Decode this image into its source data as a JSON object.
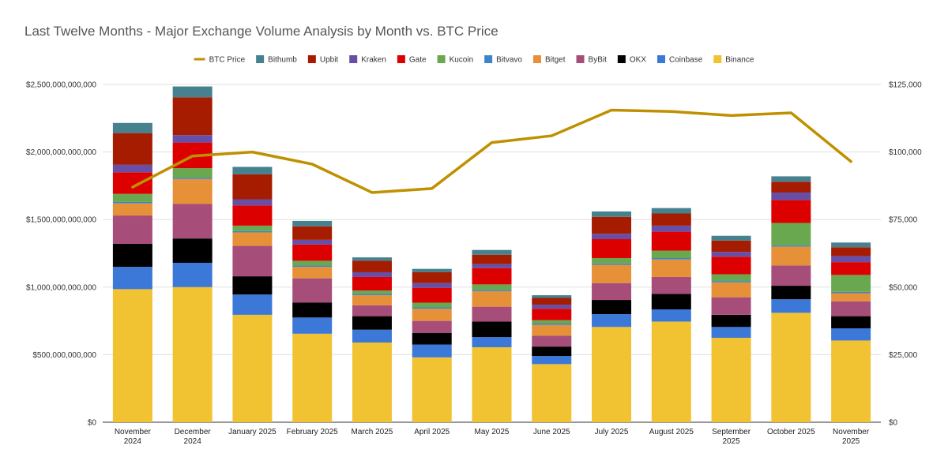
{
  "chart_data": {
    "type": "bar",
    "stacked": true,
    "title": "Last Twelve Months - Major Exchange Volume Analysis by Month vs. BTC Price",
    "categories": [
      [
        "November",
        "2024"
      ],
      [
        "December",
        "2024"
      ],
      [
        "January 2025"
      ],
      [
        "February 2025"
      ],
      [
        "March 2025"
      ],
      [
        "April 2025"
      ],
      [
        "May 2025"
      ],
      [
        "June 2025"
      ],
      [
        "July 2025"
      ],
      [
        "August 2025"
      ],
      [
        "September",
        "2025"
      ],
      [
        "October 2025"
      ],
      [
        "November",
        "2025"
      ]
    ],
    "y_left": {
      "range": [
        0,
        2500000000000
      ],
      "ticks": [
        "$0",
        "$500,000,000,000",
        "$1,000,000,000,000",
        "$1,500,000,000,000",
        "$2,000,000,000,000",
        "$2,500,000,000,000"
      ]
    },
    "y_right": {
      "range": [
        0,
        125000
      ],
      "ticks": [
        "$0",
        "$25,000",
        "$50,000",
        "$75,000",
        "$100,000",
        "$125,000"
      ]
    },
    "grid": true,
    "legend_position": "top",
    "legend": [
      "BTC Price",
      "Bithumb",
      "Upbit",
      "Kraken",
      "Gate",
      "Kucoin",
      "Bitvavo",
      "Bitget",
      "ByBit",
      "OKX",
      "Coinbase",
      "Binance"
    ],
    "series": [
      {
        "name": "Binance",
        "color": "#f1c232",
        "values": [
          985000000000,
          1000000000000,
          795000000000,
          655000000000,
          590000000000,
          480000000000,
          555000000000,
          430000000000,
          705000000000,
          745000000000,
          625000000000,
          810000000000,
          605000000000
        ]
      },
      {
        "name": "Coinbase",
        "color": "#3c78d8",
        "values": [
          165000000000,
          180000000000,
          150000000000,
          120000000000,
          95000000000,
          95000000000,
          75000000000,
          60000000000,
          95000000000,
          90000000000,
          80000000000,
          100000000000,
          90000000000
        ]
      },
      {
        "name": "OKX",
        "color": "#000000",
        "values": [
          170000000000,
          180000000000,
          135000000000,
          110000000000,
          100000000000,
          85000000000,
          115000000000,
          70000000000,
          105000000000,
          115000000000,
          90000000000,
          100000000000,
          90000000000
        ]
      },
      {
        "name": "ByBit",
        "color": "#a64d79",
        "values": [
          210000000000,
          255000000000,
          225000000000,
          180000000000,
          80000000000,
          90000000000,
          110000000000,
          80000000000,
          125000000000,
          125000000000,
          130000000000,
          150000000000,
          110000000000
        ]
      },
      {
        "name": "Bitget",
        "color": "#e69138",
        "values": [
          90000000000,
          185000000000,
          100000000000,
          85000000000,
          75000000000,
          90000000000,
          115000000000,
          80000000000,
          135000000000,
          130000000000,
          110000000000,
          140000000000,
          60000000000
        ]
      },
      {
        "name": "Bitvavo",
        "color": "#3d85c6",
        "values": [
          10000000000,
          10000000000,
          10000000000,
          10000000000,
          10000000000,
          10000000000,
          10000000000,
          10000000000,
          10000000000,
          10000000000,
          10000000000,
          10000000000,
          10000000000
        ]
      },
      {
        "name": "Kucoin",
        "color": "#6aa84f",
        "values": [
          60000000000,
          70000000000,
          40000000000,
          35000000000,
          25000000000,
          35000000000,
          40000000000,
          25000000000,
          40000000000,
          55000000000,
          50000000000,
          165000000000,
          125000000000
        ]
      },
      {
        "name": "Gate",
        "color": "#dd0000",
        "values": [
          160000000000,
          190000000000,
          150000000000,
          120000000000,
          100000000000,
          110000000000,
          120000000000,
          85000000000,
          140000000000,
          140000000000,
          130000000000,
          170000000000,
          95000000000
        ]
      },
      {
        "name": "Kraken",
        "color": "#674ea7",
        "values": [
          55000000000,
          55000000000,
          45000000000,
          35000000000,
          35000000000,
          35000000000,
          30000000000,
          30000000000,
          40000000000,
          45000000000,
          35000000000,
          55000000000,
          45000000000
        ]
      },
      {
        "name": "Upbit",
        "color": "#a61c00",
        "values": [
          235000000000,
          280000000000,
          185000000000,
          100000000000,
          85000000000,
          80000000000,
          70000000000,
          50000000000,
          125000000000,
          90000000000,
          85000000000,
          80000000000,
          65000000000
        ]
      },
      {
        "name": "Bithumb",
        "color": "#45818e",
        "values": [
          75000000000,
          80000000000,
          55000000000,
          40000000000,
          25000000000,
          25000000000,
          35000000000,
          20000000000,
          40000000000,
          40000000000,
          35000000000,
          40000000000,
          35000000000
        ]
      }
    ],
    "line_series": {
      "name": "BTC Price",
      "color": "#bf9000",
      "axis": "right",
      "values": [
        87000,
        98500,
        100000,
        95500,
        85000,
        86500,
        103500,
        106000,
        115500,
        115000,
        113500,
        114500,
        96500
      ]
    }
  }
}
